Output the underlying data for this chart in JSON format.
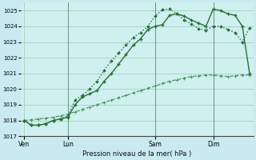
{
  "background_color": "#c8eaf0",
  "plot_bg_color": "#cef0ee",
  "grid_color": "#a0c8c0",
  "title": "Pression niveau de la mer( hPa )",
  "ylim": [
    1017.0,
    1025.5
  ],
  "yticks": [
    1017,
    1018,
    1019,
    1020,
    1021,
    1022,
    1023,
    1024,
    1025
  ],
  "line_color_dark": "#2a6e3a",
  "line_color_mid": "#2a6e3a",
  "line_color_light": "#3a8a4a",
  "xtick_labels": [
    "Ven",
    "Lun",
    "Sam",
    "Dim"
  ],
  "xtick_positions": [
    0,
    6,
    18,
    26
  ],
  "total_points": 32,
  "series_slow": [
    1018.0,
    1018.05,
    1018.1,
    1018.15,
    1018.2,
    1018.3,
    1018.4,
    1018.55,
    1018.7,
    1018.85,
    1019.0,
    1019.15,
    1019.3,
    1019.45,
    1019.6,
    1019.75,
    1019.9,
    1020.05,
    1020.2,
    1020.35,
    1020.5,
    1020.6,
    1020.7,
    1020.8,
    1020.85,
    1020.9,
    1020.9,
    1020.85,
    1020.8,
    1020.85,
    1020.9,
    1020.9
  ],
  "series_mid": [
    1018.0,
    1017.7,
    1017.7,
    1017.8,
    1018.0,
    1018.1,
    1018.2,
    1019.0,
    1019.5,
    1019.7,
    1019.9,
    1020.5,
    1021.0,
    1021.6,
    1022.2,
    1022.8,
    1023.2,
    1023.8,
    1024.0,
    1024.1,
    1024.7,
    1024.8,
    1024.65,
    1024.4,
    1024.2,
    1024.0,
    1025.1,
    1025.0,
    1024.8,
    1024.7,
    1024.0,
    1021.0
  ],
  "series_top": [
    1018.0,
    1017.7,
    1017.7,
    1017.8,
    1018.0,
    1018.1,
    1018.3,
    1019.3,
    1019.6,
    1020.0,
    1020.5,
    1021.2,
    1021.8,
    1022.3,
    1022.8,
    1023.3,
    1023.6,
    1024.0,
    1024.65,
    1025.05,
    1025.1,
    1024.8,
    1024.4,
    1024.15,
    1023.85,
    1023.75,
    1024.0,
    1024.0,
    1023.8,
    1023.6,
    1023.0,
    1023.9
  ],
  "vline_positions": [
    6,
    18,
    26
  ]
}
